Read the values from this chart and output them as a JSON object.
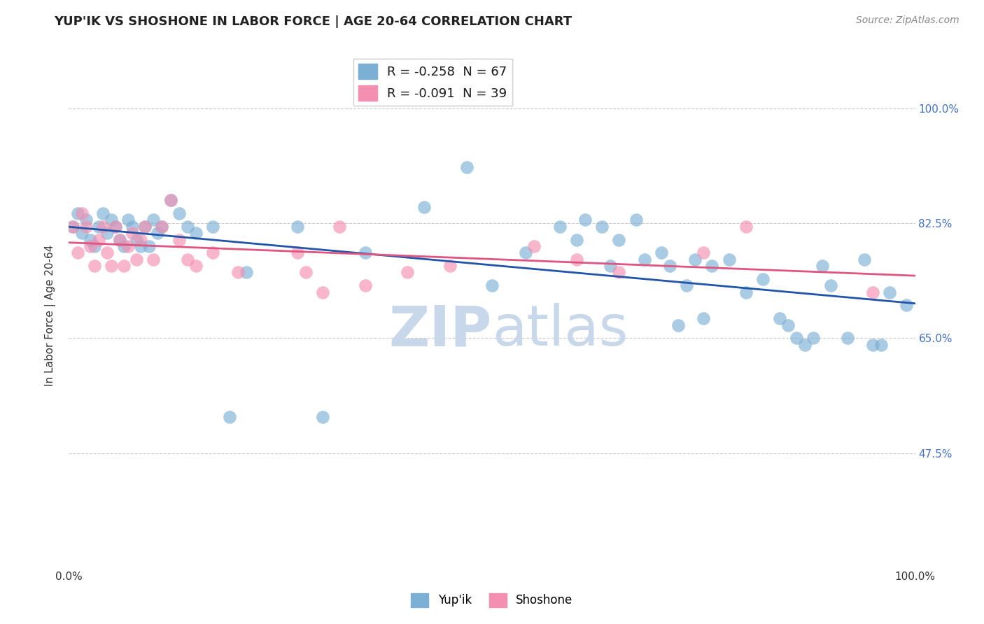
{
  "title": "YUP'IK VS SHOSHONE IN LABOR FORCE | AGE 20-64 CORRELATION CHART",
  "source": "Source: ZipAtlas.com",
  "ylabel": "In Labor Force | Age 20-64",
  "xlim": [
    0.0,
    1.0
  ],
  "ylim": [
    0.3,
    1.07
  ],
  "x_ticks": [
    0.0,
    0.1,
    0.2,
    0.3,
    0.4,
    0.5,
    0.6,
    0.7,
    0.8,
    0.9,
    1.0
  ],
  "x_tick_labels": [
    "0.0%",
    "",
    "",
    "",
    "",
    "",
    "",
    "",
    "",
    "",
    "100.0%"
  ],
  "y_tick_labels": [
    "47.5%",
    "65.0%",
    "82.5%",
    "100.0%"
  ],
  "y_ticks": [
    0.475,
    0.65,
    0.825,
    1.0
  ],
  "yupik_color": "#7bafd4",
  "shoshone_color": "#f48fb1",
  "yupik_line_color": "#2255aa",
  "shoshone_line_color": "#e05580",
  "watermark_color": "#c8d8ea",
  "background_color": "#ffffff",
  "grid_color": "#cccccc",
  "legend_yupik_label": "R = -0.258  N = 67",
  "legend_shoshone_label": "R = -0.091  N = 39",
  "yupik_x": [
    0.005,
    0.01,
    0.015,
    0.02,
    0.025,
    0.03,
    0.035,
    0.04,
    0.045,
    0.05,
    0.055,
    0.06,
    0.065,
    0.07,
    0.075,
    0.08,
    0.085,
    0.09,
    0.095,
    0.1,
    0.105,
    0.11,
    0.12,
    0.13,
    0.14,
    0.15,
    0.17,
    0.19,
    0.21,
    0.27,
    0.3,
    0.35,
    0.42,
    0.47,
    0.5,
    0.54,
    0.58,
    0.6,
    0.61,
    0.63,
    0.64,
    0.65,
    0.67,
    0.68,
    0.7,
    0.71,
    0.72,
    0.73,
    0.74,
    0.75,
    0.76,
    0.78,
    0.8,
    0.82,
    0.84,
    0.85,
    0.86,
    0.87,
    0.88,
    0.89,
    0.9,
    0.92,
    0.94,
    0.95,
    0.96,
    0.97,
    0.99
  ],
  "yupik_y": [
    0.82,
    0.84,
    0.81,
    0.83,
    0.8,
    0.79,
    0.82,
    0.84,
    0.81,
    0.83,
    0.82,
    0.8,
    0.79,
    0.83,
    0.82,
    0.8,
    0.79,
    0.82,
    0.79,
    0.83,
    0.81,
    0.82,
    0.86,
    0.84,
    0.82,
    0.81,
    0.82,
    0.53,
    0.75,
    0.82,
    0.53,
    0.78,
    0.85,
    0.91,
    0.73,
    0.78,
    0.82,
    0.8,
    0.83,
    0.82,
    0.76,
    0.8,
    0.83,
    0.77,
    0.78,
    0.76,
    0.67,
    0.73,
    0.77,
    0.68,
    0.76,
    0.77,
    0.72,
    0.74,
    0.68,
    0.67,
    0.65,
    0.64,
    0.65,
    0.76,
    0.73,
    0.65,
    0.77,
    0.64,
    0.64,
    0.72,
    0.7
  ],
  "shoshone_x": [
    0.005,
    0.01,
    0.015,
    0.02,
    0.025,
    0.03,
    0.035,
    0.04,
    0.045,
    0.05,
    0.055,
    0.06,
    0.065,
    0.07,
    0.075,
    0.08,
    0.085,
    0.09,
    0.1,
    0.11,
    0.12,
    0.13,
    0.14,
    0.15,
    0.17,
    0.2,
    0.27,
    0.28,
    0.3,
    0.32,
    0.35,
    0.4,
    0.45,
    0.55,
    0.6,
    0.65,
    0.75,
    0.8,
    0.95
  ],
  "shoshone_y": [
    0.82,
    0.78,
    0.84,
    0.82,
    0.79,
    0.76,
    0.8,
    0.82,
    0.78,
    0.76,
    0.82,
    0.8,
    0.76,
    0.79,
    0.81,
    0.77,
    0.8,
    0.82,
    0.77,
    0.82,
    0.86,
    0.8,
    0.77,
    0.76,
    0.78,
    0.75,
    0.78,
    0.75,
    0.72,
    0.82,
    0.73,
    0.75,
    0.76,
    0.79,
    0.77,
    0.75,
    0.78,
    0.82,
    0.72
  ]
}
